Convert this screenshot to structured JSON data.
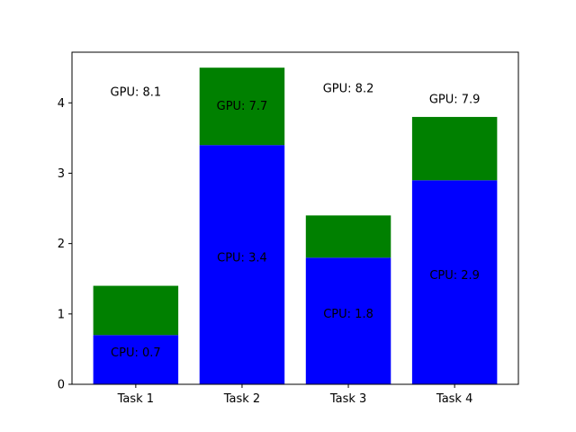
{
  "chart_data": {
    "type": "bar",
    "stacked": true,
    "categories": [
      "Task 1",
      "Task 2",
      "Task 3",
      "Task 4"
    ],
    "series": [
      {
        "values": [
          0.7,
          3.4,
          1.8,
          2.9
        ],
        "color": "#0000ff"
      },
      {
        "values": [
          0.7,
          1.1,
          0.6,
          0.9
        ],
        "color": "#008000"
      }
    ],
    "annotations": [
      {
        "category": "Task 1",
        "cpu_text": "CPU: 0.7",
        "cpu_y": 0.45,
        "gpu_text": "GPU: 8.1",
        "gpu_y": 4.15
      },
      {
        "category": "Task 2",
        "cpu_text": "CPU: 3.4",
        "cpu_y": 1.8,
        "gpu_text": "GPU: 7.7",
        "gpu_y": 3.95
      },
      {
        "category": "Task 3",
        "cpu_text": "CPU: 1.8",
        "cpu_y": 1.0,
        "gpu_text": "GPU: 8.2",
        "gpu_y": 4.2
      },
      {
        "category": "Task 4",
        "cpu_text": "CPU: 2.9",
        "cpu_y": 1.55,
        "gpu_text": "GPU: 7.9",
        "gpu_y": 4.05
      }
    ],
    "ylim": [
      0,
      4.72
    ],
    "yticks": [
      0,
      1,
      2,
      3,
      4
    ],
    "grid": false,
    "legend": false
  }
}
